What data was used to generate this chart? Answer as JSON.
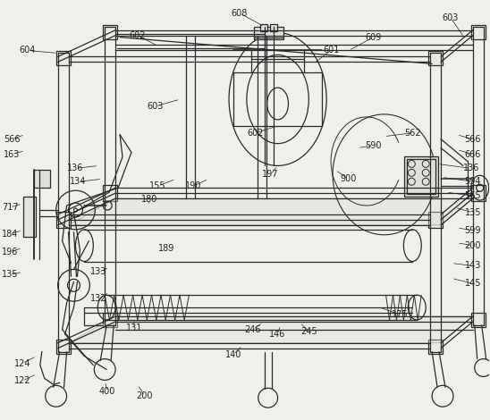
{
  "background_color": "#f0f0eb",
  "line_color": "#2a2a2a",
  "lw": 0.9,
  "figsize": [
    5.48,
    4.7
  ],
  "dpi": 100,
  "label_fs": 7.0,
  "label_color": "#222222"
}
